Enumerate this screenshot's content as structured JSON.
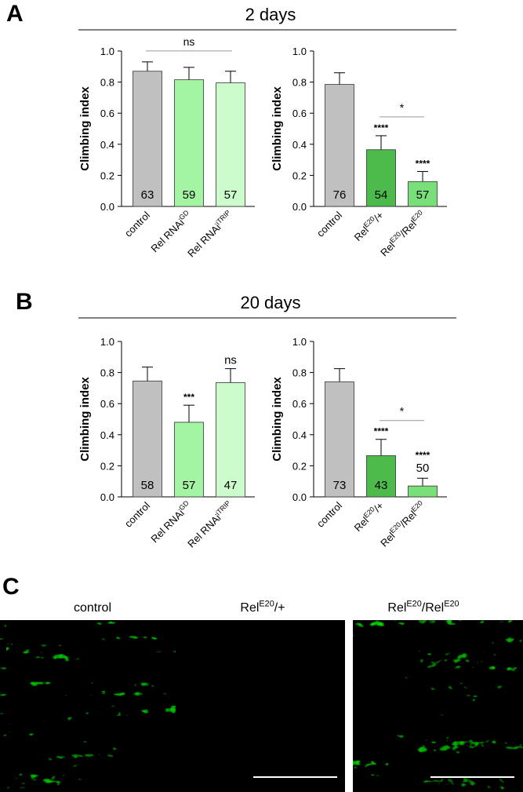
{
  "panels": [
    {
      "letter": "A",
      "title": "2 days"
    },
    {
      "letter": "B",
      "title": "20 days"
    }
  ],
  "chart_data": [
    {
      "type": "bar",
      "ylabel": "Climbing index",
      "ylim": [
        0,
        1
      ],
      "yticks": [
        {
          "value": 0,
          "label": "0.0"
        },
        {
          "value": 0.2,
          "label": "0.2"
        },
        {
          "value": 0.4,
          "label": "0.4"
        },
        {
          "value": 0.6,
          "label": "0.6"
        },
        {
          "value": 0.8,
          "label": "0.8"
        },
        {
          "value": 1,
          "label": "1.0"
        }
      ],
      "categories": [
        [
          {
            "text": "control"
          }
        ],
        [
          {
            "text": "Rel RNAi"
          },
          {
            "text": "GD",
            "sup": true
          }
        ],
        [
          {
            "text": "Rel RNAi"
          },
          {
            "text": "iTRIP",
            "sup": true
          }
        ]
      ],
      "values": [
        0.87,
        0.815,
        0.795
      ],
      "errors": [
        0.06,
        0.08,
        0.075
      ],
      "colors": [
        "#c0c0c0",
        "#a3f5a3",
        "#ccfccc"
      ],
      "n_labels": [
        63,
        59,
        57
      ],
      "significance": [
        null,
        null,
        null
      ],
      "brackets": [
        {
          "label": "ns",
          "span": [
            0,
            2
          ]
        }
      ]
    },
    {
      "type": "bar",
      "ylabel": "Climbing index",
      "ylim": [
        0,
        1
      ],
      "yticks": [
        {
          "value": 0,
          "label": "0.0"
        },
        {
          "value": 0.2,
          "label": "0.2"
        },
        {
          "value": 0.4,
          "label": "0.4"
        },
        {
          "value": 0.6,
          "label": "0.6"
        },
        {
          "value": 0.8,
          "label": "0.8"
        },
        {
          "value": 1,
          "label": "1.0"
        }
      ],
      "categories": [
        [
          {
            "text": "control"
          }
        ],
        [
          {
            "text": "Rel"
          },
          {
            "text": "E20",
            "sup": true
          },
          {
            "text": "/+"
          }
        ],
        [
          {
            "text": "Rel"
          },
          {
            "text": "E20",
            "sup": true
          },
          {
            "text": "/Rel"
          },
          {
            "text": "E20",
            "sup": true
          }
        ]
      ],
      "values": [
        0.785,
        0.365,
        0.16
      ],
      "errors": [
        0.075,
        0.09,
        0.065
      ],
      "colors": [
        "#c0c0c0",
        "#4cbb4c",
        "#79e079"
      ],
      "n_labels": [
        76,
        54,
        57
      ],
      "significance": [
        null,
        "****",
        "****"
      ],
      "brackets": [
        {
          "label": "*",
          "span": [
            1,
            2
          ]
        }
      ]
    },
    {
      "type": "bar",
      "ylabel": "Climbing index",
      "ylim": [
        0,
        1
      ],
      "yticks": [
        {
          "value": 0,
          "label": "0.0"
        },
        {
          "value": 0.2,
          "label": "0.2"
        },
        {
          "value": 0.4,
          "label": "0.4"
        },
        {
          "value": 0.6,
          "label": "0.6"
        },
        {
          "value": 0.8,
          "label": "0.8"
        },
        {
          "value": 1,
          "label": "1.0"
        }
      ],
      "categories": [
        [
          {
            "text": "control"
          }
        ],
        [
          {
            "text": "Rel RNAi"
          },
          {
            "text": "GD",
            "sup": true
          }
        ],
        [
          {
            "text": "Rel RNAi"
          },
          {
            "text": "iTRIP",
            "sup": true
          }
        ]
      ],
      "values": [
        0.745,
        0.48,
        0.735
      ],
      "errors": [
        0.09,
        0.11,
        0.09
      ],
      "colors": [
        "#c0c0c0",
        "#a3f5a3",
        "#ccfccc"
      ],
      "n_labels": [
        58,
        57,
        47
      ],
      "significance": [
        null,
        "***",
        "ns"
      ],
      "brackets": []
    },
    {
      "type": "bar",
      "ylabel": "Climbing index",
      "ylim": [
        0,
        1
      ],
      "yticks": [
        {
          "value": 0,
          "label": "0.0"
        },
        {
          "value": 0.2,
          "label": "0.2"
        },
        {
          "value": 0.4,
          "label": "0.4"
        },
        {
          "value": 0.6,
          "label": "0.6"
        },
        {
          "value": 0.8,
          "label": "0.8"
        },
        {
          "value": 1,
          "label": "1.0"
        }
      ],
      "categories": [
        [
          {
            "text": "control"
          }
        ],
        [
          {
            "text": "Rel"
          },
          {
            "text": "E20",
            "sup": true
          },
          {
            "text": "/+"
          }
        ],
        [
          {
            "text": "Rel"
          },
          {
            "text": "E20",
            "sup": true
          },
          {
            "text": "/Rel"
          },
          {
            "text": "E20",
            "sup": true
          }
        ]
      ],
      "values": [
        0.74,
        0.265,
        0.07
      ],
      "errors": [
        0.085,
        0.105,
        0.05
      ],
      "colors": [
        "#c0c0c0",
        "#4cbb4c",
        "#79e079"
      ],
      "n_labels": [
        73,
        43,
        50
      ],
      "significance": [
        null,
        "****",
        "****"
      ],
      "brackets": [
        {
          "label": "*",
          "span": [
            1,
            2
          ]
        }
      ]
    }
  ],
  "images": {
    "letter": "C",
    "labels": [
      [
        {
          "text": "control"
        }
      ],
      [
        {
          "text": "Rel"
        },
        {
          "text": "E20",
          "sup": true
        },
        {
          "text": "/+"
        }
      ],
      [
        {
          "text": "Rel"
        },
        {
          "text": "E20",
          "sup": true
        },
        {
          "text": "/Rel"
        },
        {
          "text": "E20",
          "sup": true
        }
      ]
    ]
  }
}
